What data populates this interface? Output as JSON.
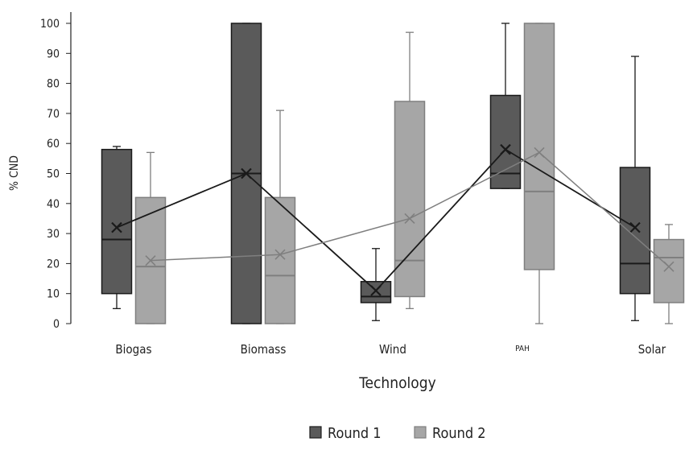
{
  "chart_data": {
    "type": "box",
    "xlabel": "Technology",
    "ylabel": "% CND",
    "ylim": [
      0,
      100
    ],
    "yticks": [
      0,
      10,
      20,
      30,
      40,
      50,
      60,
      70,
      80,
      90,
      100
    ],
    "categories": [
      "Biogas",
      "Biomass",
      "Wind",
      "PAH",
      "Solar"
    ],
    "legend_position": "bottom-center",
    "series": [
      {
        "name": "Round 1",
        "color": "#5a5a5a",
        "line_color": "#1a1a1a",
        "boxes": [
          {
            "min": 5,
            "q1": 10,
            "median": 28,
            "q3": 58,
            "max": 59,
            "mean": 32
          },
          {
            "min": 0,
            "q1": 0,
            "median": 50,
            "q3": 100,
            "max": 100,
            "mean": 50
          },
          {
            "min": 1,
            "q1": 7,
            "median": 9,
            "q3": 14,
            "max": 25,
            "mean": 11
          },
          {
            "min": 45,
            "q1": 45,
            "median": 50,
            "q3": 76,
            "max": 100,
            "mean": 58
          },
          {
            "min": 1,
            "q1": 10,
            "median": 20,
            "q3": 52,
            "max": 89,
            "mean": 32
          }
        ]
      },
      {
        "name": "Round 2",
        "color": "#a6a6a6",
        "line_color": "#7f7f7f",
        "boxes": [
          {
            "min": 0,
            "q1": 0,
            "median": 19,
            "q3": 42,
            "max": 57,
            "mean": 21
          },
          {
            "min": 0,
            "q1": 0,
            "median": 16,
            "q3": 42,
            "max": 71,
            "mean": 23
          },
          {
            "min": 5,
            "q1": 9,
            "median": 21,
            "q3": 74,
            "max": 97,
            "mean": 35
          },
          {
            "min": 0,
            "q1": 18,
            "median": 44,
            "q3": 100,
            "max": 100,
            "mean": 57
          },
          {
            "min": 0,
            "q1": 7,
            "median": 22,
            "q3": 28,
            "max": 33,
            "mean": 19
          }
        ]
      }
    ]
  }
}
